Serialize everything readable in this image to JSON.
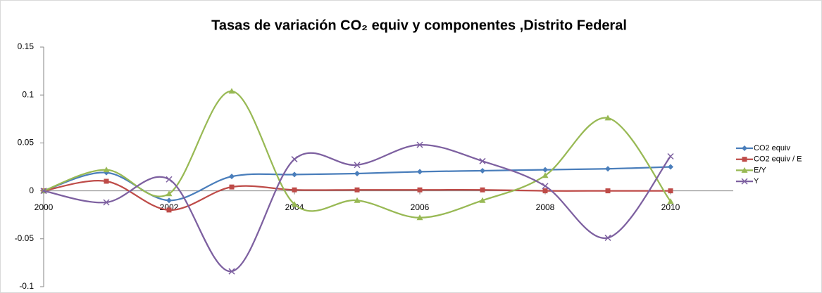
{
  "chart_data": {
    "type": "line",
    "title": "Tasas de variación CO₂ equiv y componentes ,Distrito Federal",
    "x": [
      2000,
      2001,
      2002,
      2003,
      2004,
      2005,
      2006,
      2007,
      2008,
      2009,
      2010
    ],
    "xlim": [
      2000,
      2011
    ],
    "xticks": [
      2000,
      2002,
      2004,
      2006,
      2008,
      2010
    ],
    "ylim": [
      -0.1,
      0.15
    ],
    "yticks": [
      -0.1,
      -0.05,
      0,
      0.05,
      0.1,
      0.15
    ],
    "smooth": true,
    "legend": "right",
    "series": [
      {
        "name": "CO2 equiv",
        "color": "#4a7ebb",
        "marker": "diamond",
        "values": [
          0,
          0.019,
          -0.01,
          0.015,
          0.017,
          0.018,
          0.02,
          0.021,
          0.022,
          0.023,
          0.025
        ]
      },
      {
        "name": "CO2 equiv / E",
        "color": "#be4b48",
        "marker": "square",
        "values": [
          0,
          0.01,
          -0.02,
          0.004,
          0.001,
          0.001,
          0.001,
          0.001,
          0,
          0,
          0
        ]
      },
      {
        "name": "E/Y",
        "color": "#98b954",
        "marker": "triangle",
        "values": [
          0,
          0.022,
          -0.003,
          0.104,
          -0.014,
          -0.01,
          -0.028,
          -0.01,
          0.016,
          0.076,
          -0.011
        ]
      },
      {
        "name": "Y",
        "color": "#7d60a0",
        "marker": "x",
        "values": [
          0,
          -0.012,
          0.012,
          -0.084,
          0.033,
          0.027,
          0.048,
          0.031,
          0.005,
          -0.049,
          0.036
        ]
      }
    ]
  }
}
